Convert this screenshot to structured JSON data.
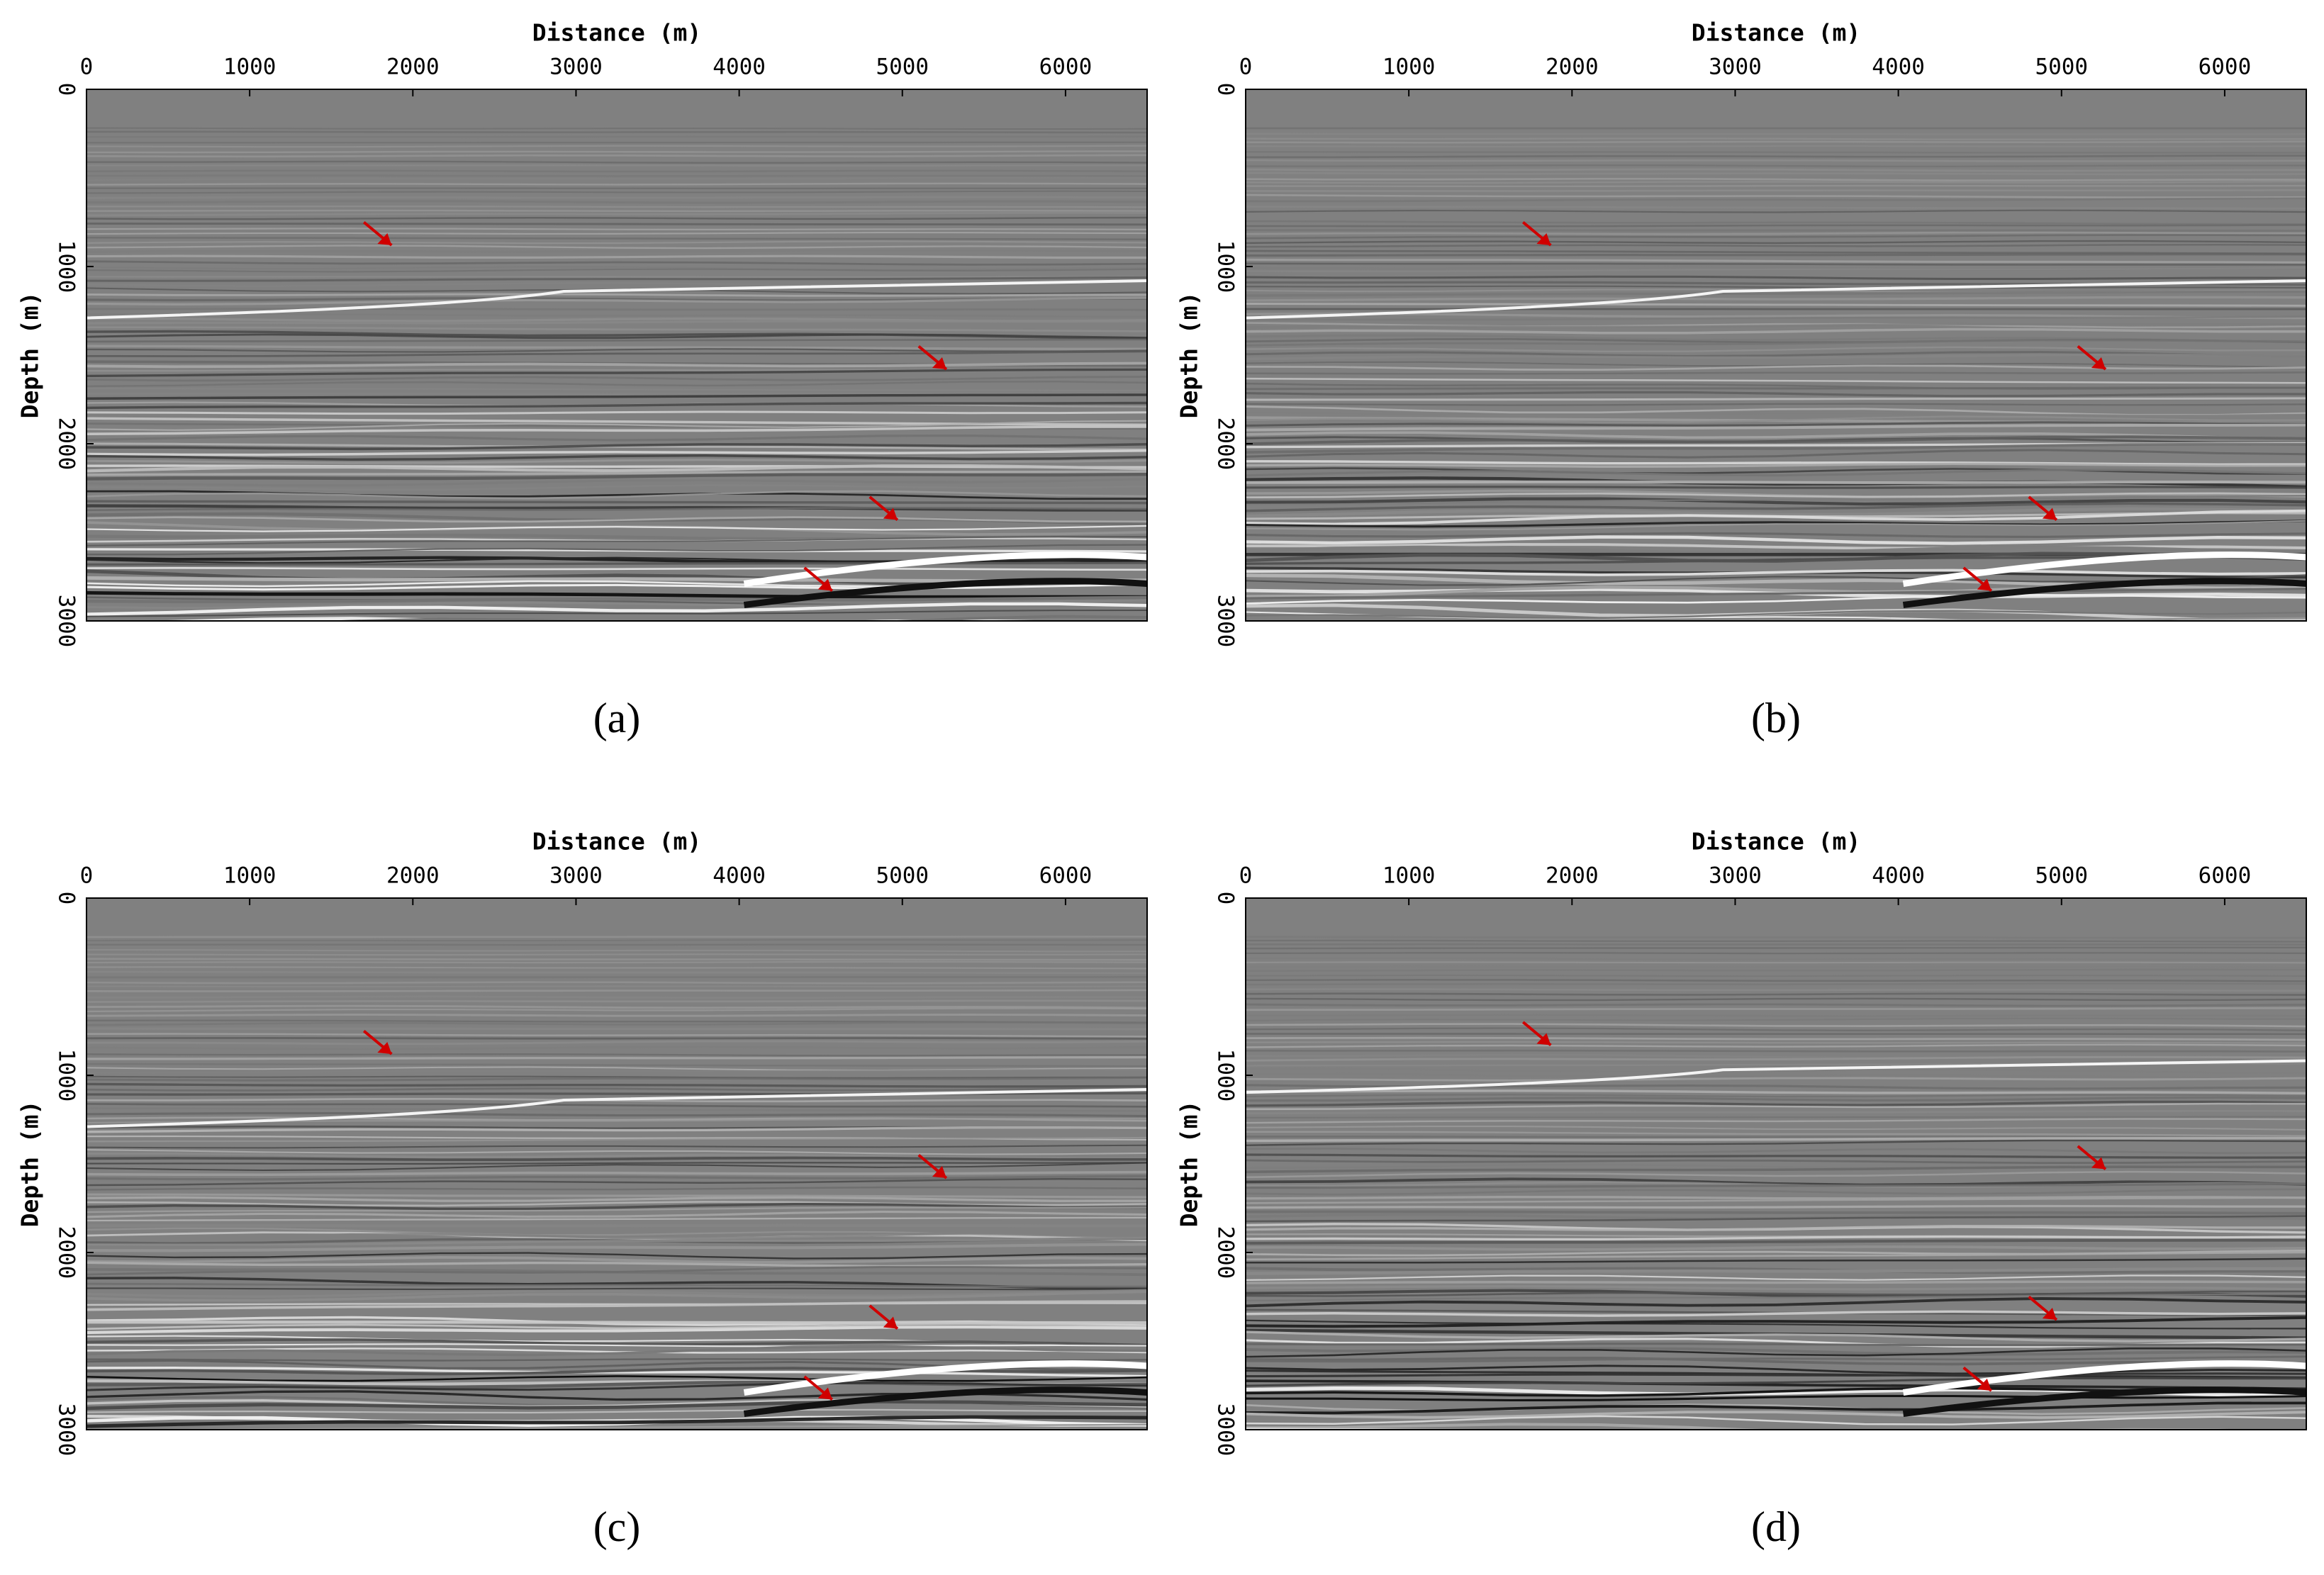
{
  "chart_data": [
    {
      "type": "image",
      "x_label": "Distance (m)",
      "y_label": "Depth (m)",
      "caption": "(a)",
      "xlim": [
        0,
        6500
      ],
      "ylim": [
        3000,
        0
      ],
      "xticks": [
        0,
        1000,
        2000,
        3000,
        4000,
        5000,
        6000
      ],
      "yticks": [
        0,
        1000,
        2000,
        3000
      ]
    },
    {
      "type": "image",
      "x_label": "Distance (m)",
      "y_label": "Depth (m)",
      "caption": "(b)",
      "xlim": [
        0,
        6500
      ],
      "ylim": [
        3000,
        0
      ],
      "xticks": [
        0,
        1000,
        2000,
        3000,
        4000,
        5000,
        6000
      ],
      "yticks": [
        0,
        1000,
        2000,
        3000
      ]
    },
    {
      "type": "image",
      "x_label": "Distance (m)",
      "y_label": "Depth (m)",
      "caption": "(c)",
      "xlim": [
        0,
        6500
      ],
      "ylim": [
        3000,
        0
      ],
      "xticks": [
        0,
        1000,
        2000,
        3000,
        4000,
        5000,
        6000
      ],
      "yticks": [
        0,
        1000,
        2000,
        3000
      ]
    },
    {
      "type": "image",
      "x_label": "Distance (m)",
      "y_label": "Depth (m)",
      "caption": "(d)",
      "xlim": [
        0,
        6500
      ],
      "ylim": [
        3000,
        0
      ],
      "xticks": [
        0,
        1000,
        2000,
        3000,
        4000,
        5000,
        6000
      ],
      "yticks": [
        0,
        1000,
        2000,
        3000
      ]
    }
  ]
}
